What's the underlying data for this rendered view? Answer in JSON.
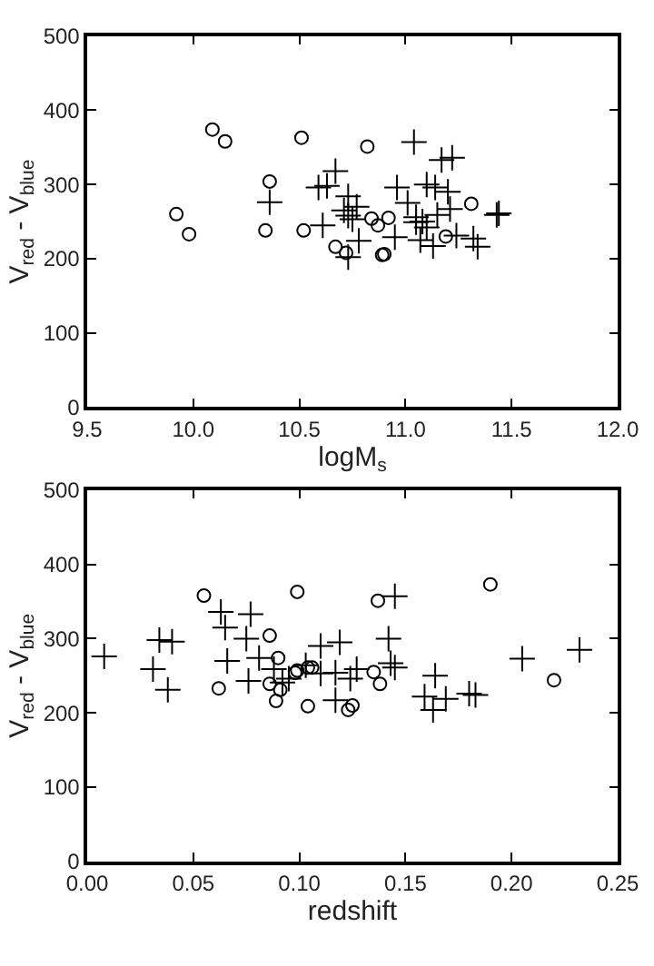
{
  "chart_data": [
    {
      "type": "scatter",
      "xlabel": "logM$_{s}$",
      "ylabel": "V$_{red}$ - V$_{blue}$",
      "xlim": [
        9.5,
        12.0
      ],
      "xticks": [
        9.5,
        {
          "value": 10,
          "label": "10.0"
        },
        10.5,
        {
          "value": 11,
          "label": "11.0"
        },
        11.5,
        {
          "value": 12,
          "label": "12.0"
        }
      ],
      "ylim": [
        0,
        500
      ],
      "yticks": [
        0,
        100,
        200,
        300,
        400,
        500
      ],
      "series": [
        {
          "color": "#000000",
          "marker": "circle",
          "x": [
            10.09,
            10.15,
            10.51,
            10.82,
            10.36,
            9.92,
            9.98,
            10.34,
            10.52,
            11.31,
            10.84,
            10.87,
            10.92,
            10.67,
            10.72,
            10.89,
            10.9,
            11.19
          ],
          "values": [
            374,
            358,
            363,
            351,
            304,
            260,
            233,
            238,
            238,
            274,
            254,
            245,
            255,
            216,
            208,
            205,
            206,
            230
          ]
        },
        {
          "color": "#000000",
          "marker": "cross",
          "x": [
            11.04,
            11.17,
            11.22,
            10.67,
            10.59,
            10.63,
            10.36,
            10.96,
            11.1,
            11.14,
            11.2,
            10.73,
            11.01,
            10.71,
            10.77,
            10.73,
            10.75,
            10.61,
            11.05,
            11.05,
            11.08,
            11.15,
            11.21,
            11.1,
            10.78,
            10.95,
            11.07,
            11.13,
            11.24,
            11.32,
            11.34,
            11.43,
            11.44,
            10.73
          ],
          "values": [
            357,
            333,
            336,
            318,
            296,
            298,
            276,
            296,
            300,
            296,
            290,
            284,
            275,
            265,
            270,
            258,
            253,
            245,
            256,
            249,
            250,
            259,
            267,
            242,
            224,
            229,
            225,
            217,
            231,
            227,
            216,
            259,
            261,
            202
          ]
        }
      ]
    },
    {
      "type": "scatter",
      "xlabel": "redshift",
      "ylabel": "V$_{red}$ - V$_{blue}$",
      "xlim": [
        0,
        0.25
      ],
      "xticks": [
        {
          "value": 0,
          "label": "0.00"
        },
        0.05,
        {
          "value": 0.1,
          "label": "0.10"
        },
        0.15,
        {
          "value": 0.2,
          "label": "0.20"
        },
        0.25
      ],
      "ylim": [
        0,
        500
      ],
      "yticks": [
        0,
        100,
        200,
        300,
        400,
        500
      ],
      "series": [
        {
          "color": "#000000",
          "marker": "circle",
          "x": [
            0.055,
            0.099,
            0.137,
            0.19,
            0.086,
            0.09,
            0.062,
            0.086,
            0.089,
            0.091,
            0.098,
            0.099,
            0.104,
            0.106,
            0.135,
            0.138,
            0.104,
            0.123,
            0.125,
            0.22
          ],
          "values": [
            358,
            363,
            351,
            373,
            304,
            274,
            233,
            239,
            216,
            231,
            254,
            257,
            261,
            261,
            255,
            239,
            209,
            204,
            210,
            244
          ]
        },
        {
          "color": "#000000",
          "marker": "cross",
          "x": [
            0.008,
            0.031,
            0.034,
            0.04,
            0.038,
            0.063,
            0.077,
            0.065,
            0.075,
            0.066,
            0.076,
            0.081,
            0.088,
            0.092,
            0.095,
            0.103,
            0.11,
            0.11,
            0.119,
            0.117,
            0.127,
            0.124,
            0.117,
            0.145,
            0.142,
            0.143,
            0.145,
            0.164,
            0.159,
            0.163,
            0.169,
            0.18,
            0.183,
            0.205,
            0.232
          ],
          "values": [
            276,
            259,
            298,
            296,
            231,
            336,
            333,
            315,
            300,
            270,
            243,
            274,
            259,
            241,
            246,
            264,
            253,
            290,
            295,
            254,
            259,
            246,
            217,
            357,
            300,
            267,
            261,
            250,
            222,
            204,
            219,
            226,
            224,
            273,
            285
          ]
        }
      ]
    }
  ]
}
